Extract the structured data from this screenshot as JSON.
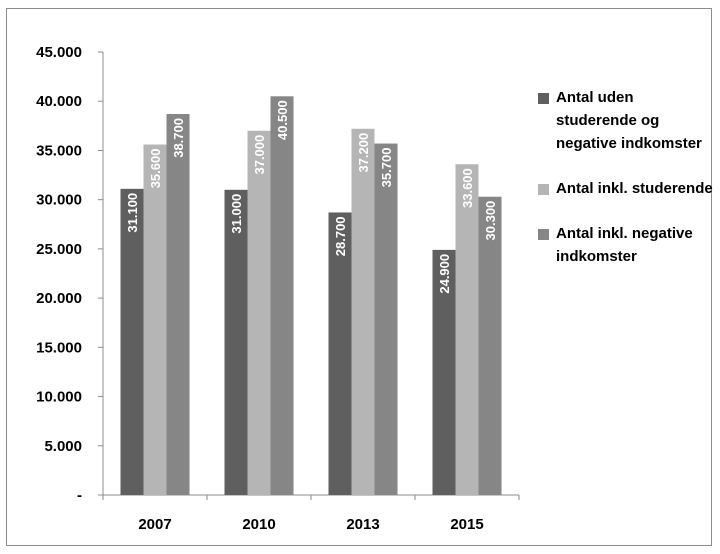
{
  "chart_data": {
    "type": "bar",
    "categories": [
      "2007",
      "2010",
      "2013",
      "2015"
    ],
    "series": [
      {
        "name": "Antal uden studerende og negative indkomster",
        "values": [
          31100,
          31000,
          28700,
          24900
        ],
        "labels": [
          "31.100",
          "31.000",
          "28.700",
          "24.900"
        ],
        "color": "#5f5f5f"
      },
      {
        "name": "Antal inkl. studerende",
        "values": [
          35600,
          37000,
          37200,
          33600
        ],
        "labels": [
          "35.600",
          "37.000",
          "37.200",
          "33.600"
        ],
        "color": "#b5b5b5"
      },
      {
        "name": "Antal inkl. negative indkomster",
        "values": [
          38700,
          40500,
          35700,
          30300
        ],
        "labels": [
          "38.700",
          "40.500",
          "35.700",
          "30.300"
        ],
        "color": "#868686"
      }
    ],
    "yticks": [
      "-",
      "5.000",
      "10.000",
      "15.000",
      "20.000",
      "25.000",
      "30.000",
      "35.000",
      "40.000",
      "45.000"
    ],
    "ylim": [
      0,
      45000
    ],
    "grid": false,
    "legend": "right",
    "data_labels": "inside-vertical"
  }
}
